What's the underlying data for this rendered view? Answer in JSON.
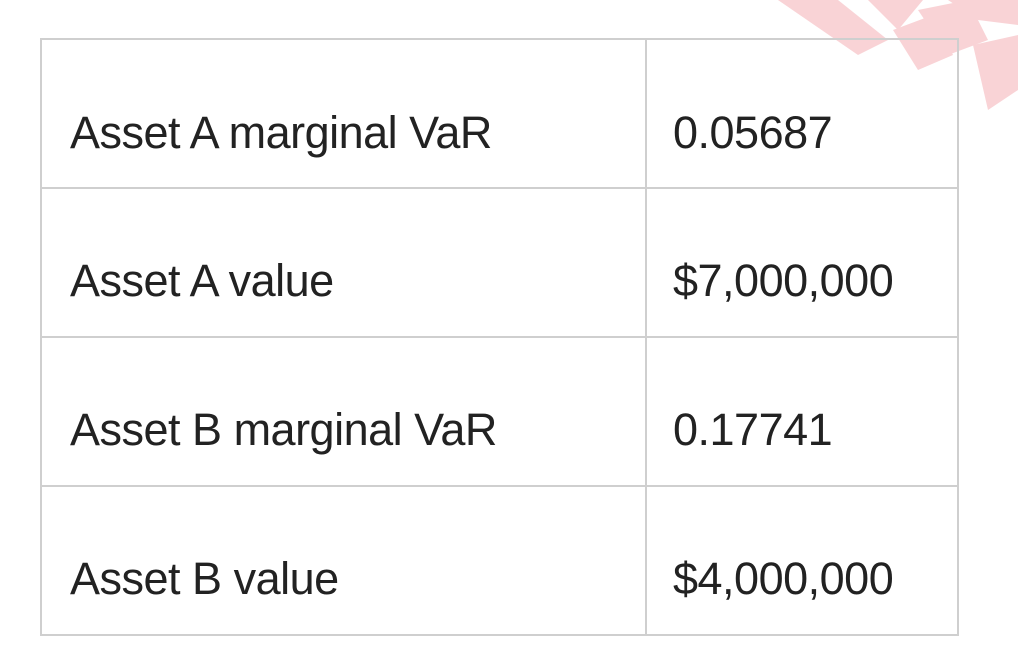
{
  "table": {
    "rows": [
      {
        "label": "Asset A marginal  VaR",
        "value": "0.05687"
      },
      {
        "label": "Asset A value",
        "value": "$7,000,000"
      },
      {
        "label": "Asset B marginal  VaR",
        "value": "0.17741"
      },
      {
        "label": "Asset B value",
        "value": "$4,000,000"
      }
    ]
  },
  "colors": {
    "border": "#cfcfcf",
    "text": "#222222",
    "watermark": "#f9d3d6"
  },
  "icons": {
    "watermark": "watermark-logo-icon"
  }
}
